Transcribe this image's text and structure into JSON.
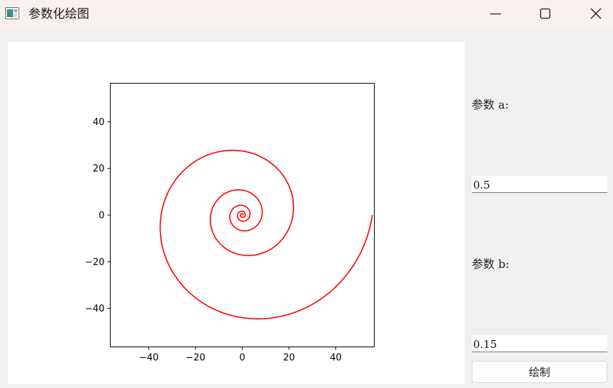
{
  "window": {
    "title": "参数化绘图",
    "controls": [
      "minimize-icon",
      "maximize-icon",
      "close-icon"
    ]
  },
  "controls": {
    "param_a_label": "参数 a:",
    "param_a_value": "0.5",
    "param_b_label": "参数 b:",
    "param_b_value": "0.15",
    "draw_button_label": "绘制"
  },
  "chart_data": {
    "type": "line",
    "curve": "logarithmic spiral r = a·e^(b·θ)",
    "parameters": {
      "a": 0.5,
      "b": 0.15
    },
    "theta_range": [
      0,
      31.4159
    ],
    "series": [
      {
        "color": "#ff0000",
        "values_generated_from": "parameters"
      }
    ],
    "xlim": [
      -56.5,
      56.5
    ],
    "ylim": [
      -56.5,
      56.5
    ],
    "xticks": [
      -40,
      -20,
      0,
      20,
      40
    ],
    "yticks": [
      -40,
      -20,
      0,
      20,
      40
    ],
    "xtick_labels": [
      "−40",
      "−20",
      "0",
      "20",
      "40"
    ],
    "ytick_labels": [
      "−40",
      "−20",
      "0",
      "20",
      "40"
    ],
    "title": "",
    "xlabel": "",
    "ylabel": "",
    "grid": false,
    "aspect": "equal"
  }
}
